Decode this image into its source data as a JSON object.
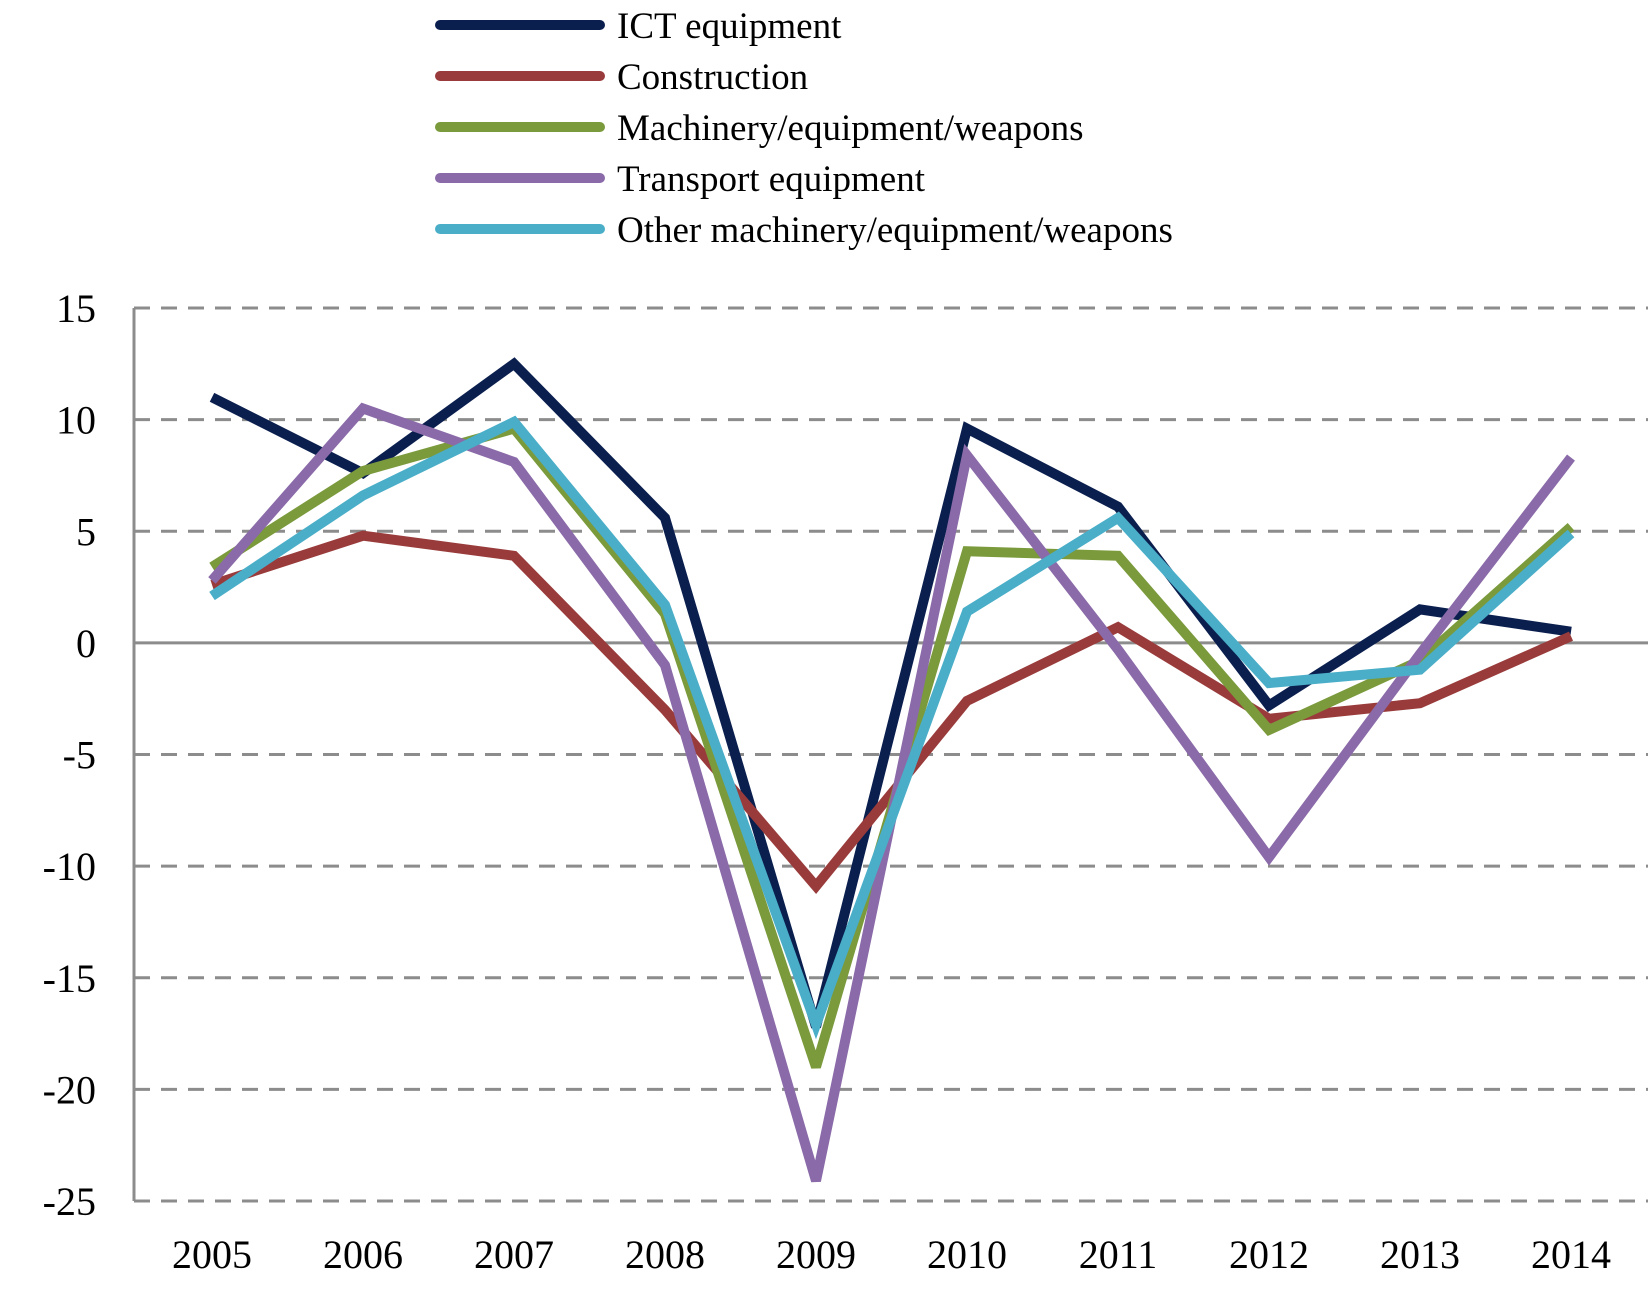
{
  "chart_data": {
    "type": "line",
    "title": "",
    "xlabel": "",
    "ylabel": "",
    "categories": [
      "2005",
      "2006",
      "2007",
      "2008",
      "2009",
      "2010",
      "2011",
      "2012",
      "2013",
      "2014"
    ],
    "ylim": [
      -25,
      15
    ],
    "yticks": [
      15,
      10,
      5,
      0,
      -5,
      -10,
      -15,
      -20,
      -25
    ],
    "ytick_labels": [
      "15",
      "10",
      "5",
      "0",
      "-5",
      "-10",
      "-15",
      "-20",
      "-25"
    ],
    "grid": "horizontal dashed",
    "legend_position": "top",
    "series": [
      {
        "name": "ICT equipment",
        "color": "#0b1f4f",
        "values": [
          11.0,
          7.6,
          12.5,
          5.6,
          -17.2,
          9.6,
          6.1,
          -2.8,
          1.5,
          0.5
        ]
      },
      {
        "name": "Construction",
        "color": "#9a3b3b",
        "values": [
          2.6,
          4.8,
          3.9,
          -3.0,
          -10.9,
          -2.6,
          0.7,
          -3.4,
          -2.7,
          0.3
        ]
      },
      {
        "name": "Machinery/equipment/weapons",
        "color": "#7a9a3c",
        "values": [
          3.4,
          7.7,
          9.6,
          1.3,
          -19.0,
          4.1,
          3.9,
          -3.9,
          -0.8,
          5.2
        ]
      },
      {
        "name": "Transport equipment",
        "color": "#8a6aa8",
        "values": [
          2.8,
          10.5,
          8.1,
          -1.0,
          -24.1,
          8.4,
          -0.3,
          -9.6,
          -0.5,
          8.3
        ]
      },
      {
        "name": "Other machinery/equipment/weapons",
        "color": "#4aaec8",
        "values": [
          2.1,
          6.6,
          9.9,
          1.7,
          -17.1,
          1.4,
          5.6,
          -1.8,
          -1.2,
          4.9
        ]
      }
    ]
  }
}
